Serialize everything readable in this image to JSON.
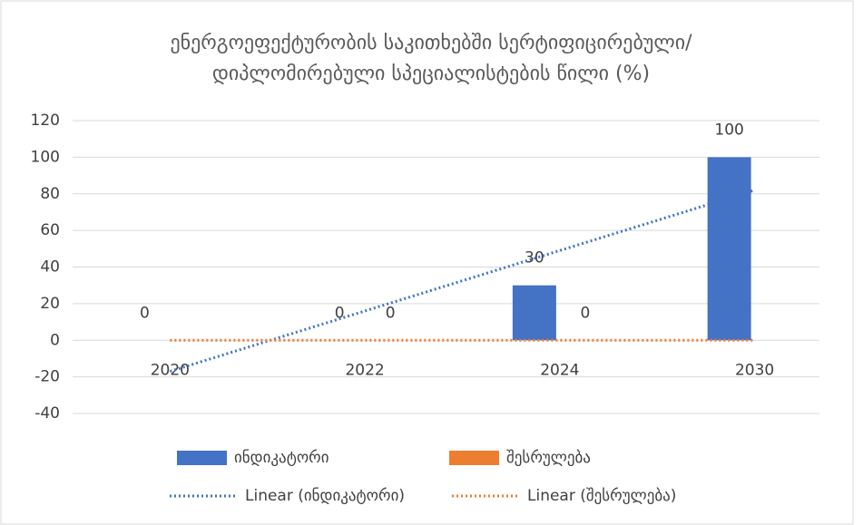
{
  "chart_data": {
    "type": "bar",
    "title": [
      "ენერგოეფექტურობის საკითხებში სერტიფიცირებული/",
      "დიპლომირებული სპეციალისტების წილი (%)"
    ],
    "categories": [
      "2020",
      "2022",
      "2024",
      "2030"
    ],
    "series": [
      {
        "name": "ინდიკატორი",
        "color": "#4472c4",
        "values": [
          0,
          0,
          30,
          100
        ]
      },
      {
        "name": "შესრულება",
        "color": "#ed7d31",
        "values": [
          null,
          0,
          0,
          null
        ]
      }
    ],
    "trendlines": [
      {
        "name": "Linear (ინდიკატორი)",
        "color": "#4472c4",
        "values": [
          -17,
          16,
          49,
          82
        ]
      },
      {
        "name": "Linear (შესრულება)",
        "color": "#ed7d31",
        "values": [
          0,
          0,
          0,
          0
        ]
      }
    ],
    "ylim": [
      -40,
      120
    ],
    "yticks": [
      -40,
      -20,
      0,
      20,
      40,
      60,
      80,
      100,
      120
    ],
    "grid": true,
    "data_labels": true,
    "legend": "bottom"
  }
}
